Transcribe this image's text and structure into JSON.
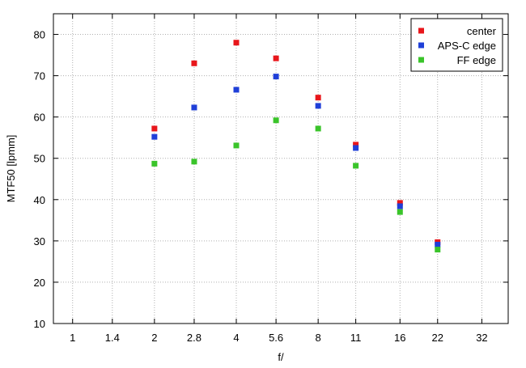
{
  "chart_data": {
    "type": "scatter",
    "xlabel": "f/",
    "ylabel": "MTF50 [lpmm]",
    "x_ticks": [
      "1",
      "1.4",
      "2",
      "2.8",
      "4",
      "5.6",
      "8",
      "11",
      "16",
      "22",
      "32"
    ],
    "x_scale": "log",
    "xlim": [
      0.85,
      40
    ],
    "ylim": [
      10,
      85
    ],
    "y_ticks": [
      10,
      20,
      30,
      40,
      50,
      60,
      70,
      80
    ],
    "grid": true,
    "legend_position": "top-right",
    "series": [
      {
        "name": "center",
        "color": "#e8161b",
        "x": [
          2,
          2.8,
          4,
          5.6,
          8,
          11,
          16,
          22
        ],
        "y": [
          57.2,
          73.0,
          78.0,
          74.2,
          64.7,
          53.3,
          39.2,
          29.7
        ]
      },
      {
        "name": "APS-C edge",
        "color": "#1f3fd8",
        "x": [
          2,
          2.8,
          4,
          5.6,
          8,
          11,
          16,
          22
        ],
        "y": [
          55.2,
          62.3,
          66.6,
          69.8,
          62.7,
          52.5,
          38.4,
          29.1
        ]
      },
      {
        "name": "FF edge",
        "color": "#3ac42a",
        "x": [
          2,
          2.8,
          4,
          5.6,
          8,
          11,
          16,
          22
        ],
        "y": [
          48.7,
          49.2,
          53.1,
          59.2,
          57.2,
          48.2,
          37.0,
          27.9
        ]
      }
    ]
  }
}
